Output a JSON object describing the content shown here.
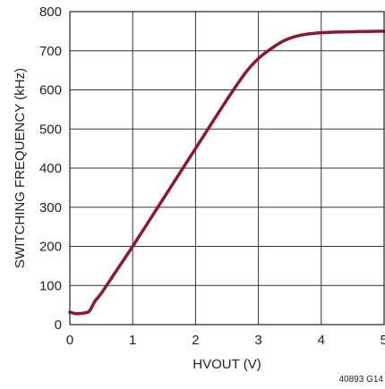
{
  "chart_data": {
    "type": "line",
    "xlabel": "HVOUT (V)",
    "ylabel": "SWITCHING FREQUENCY (kHz)",
    "xlim": [
      0,
      5
    ],
    "ylim": [
      0,
      800
    ],
    "x_ticks": [
      "0",
      "1",
      "2",
      "3",
      "4",
      "5"
    ],
    "y_ticks": [
      "0",
      "100",
      "200",
      "300",
      "400",
      "500",
      "600",
      "700",
      "800"
    ],
    "grid": true,
    "line_color": "#8B1A2E",
    "series": [
      {
        "x": [
          0,
          0.1,
          0.2,
          0.3,
          0.35,
          0.4,
          0.5,
          0.75,
          1.0,
          1.5,
          2.0,
          2.5,
          2.8,
          3.0,
          3.2,
          3.4,
          3.6,
          3.8,
          4.0,
          4.3,
          4.6,
          5.0
        ],
        "y": [
          32,
          28,
          29,
          33,
          45,
          60,
          80,
          140,
          200,
          325,
          450,
          575,
          645,
          680,
          705,
          725,
          737,
          743,
          746,
          748,
          749,
          750
        ]
      }
    ],
    "footnote": "40893 G14"
  }
}
